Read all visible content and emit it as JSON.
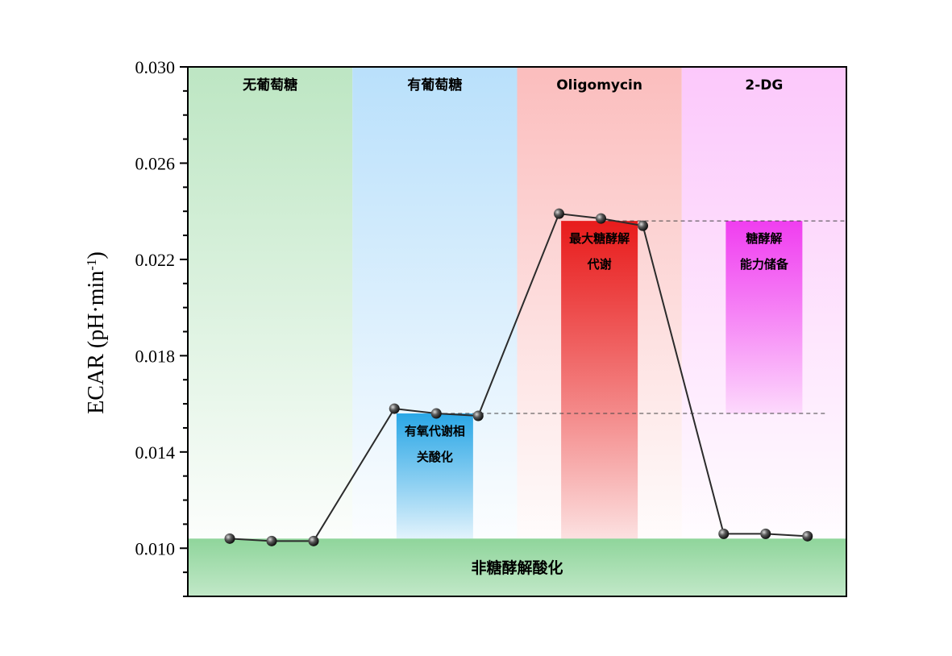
{
  "chart_data": {
    "type": "line",
    "ylabel": "ECAR (pH·min",
    "ylabel_sup": "-1",
    "ylabel_close": ")",
    "ylim": [
      0.008,
      0.03
    ],
    "yticks": [
      "0.030",
      "0.026",
      "0.022",
      "0.018",
      "0.014",
      "0.010"
    ],
    "ytick_values": [
      0.03,
      0.026,
      0.022,
      0.018,
      0.014,
      0.01
    ],
    "phases": [
      {
        "label": "无葡萄糖",
        "color": "#bde6c3"
      },
      {
        "label": "有葡萄糖",
        "color": "#b9e0fb"
      },
      {
        "label": "Oligomycin",
        "color": "#fbbdbd"
      },
      {
        "label": "2-DG",
        "color": "#fcc8fb"
      }
    ],
    "series": [
      {
        "values": [
          0.0104,
          0.0103,
          0.0103,
          0.0158,
          0.0156,
          0.0155,
          0.0239,
          0.0237,
          0.0234,
          0.0106,
          0.0106,
          0.0105
        ]
      }
    ],
    "baseline": {
      "value": 0.0104,
      "label": "非糖酵解酸化",
      "color": "#8fd59b"
    },
    "annotations": [
      {
        "lines": [
          "有氧代谢相",
          "关酸化"
        ],
        "from": 0.0104,
        "to": 0.0156,
        "phase": 1,
        "color": "#2aa7e6"
      },
      {
        "lines": [
          "最大糖酵解",
          "代谢"
        ],
        "from": 0.0104,
        "to": 0.0236,
        "phase": 2,
        "color": "#e81c1c"
      },
      {
        "lines": [
          "糖酵解",
          "能力储备"
        ],
        "from": 0.0156,
        "to": 0.0236,
        "phase": 3,
        "color": "#f03ef0"
      }
    ],
    "reference_lines": [
      0.0236,
      0.0156
    ]
  }
}
